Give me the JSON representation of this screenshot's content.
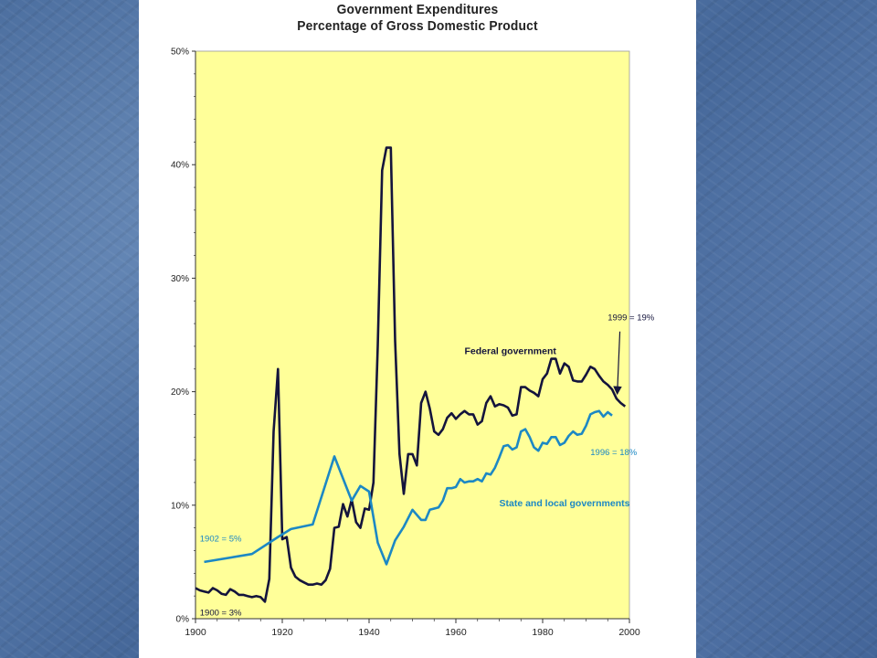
{
  "chart_data": {
    "type": "line",
    "title": "Government Expenditures",
    "subtitle": "Percentage of Gross Domestic Product",
    "xlim": [
      1900,
      2000
    ],
    "ylim": [
      0,
      50
    ],
    "x_ticks": [
      "1900",
      "1920",
      "1940",
      "1960",
      "1980",
      "2000"
    ],
    "y_ticks": [
      "0%",
      "10%",
      "20%",
      "30%",
      "40%",
      "50%"
    ],
    "colors": {
      "plot_bg": "#ffff99",
      "federal": "#14143c",
      "state": "#1c88c4",
      "slide_bg": "#4f73a6"
    },
    "series": [
      {
        "name": "Federal government",
        "color": "#14143c",
        "points": [
          [
            1900,
            2.7
          ],
          [
            1901,
            2.5
          ],
          [
            1902,
            2.4
          ],
          [
            1903,
            2.3
          ],
          [
            1904,
            2.7
          ],
          [
            1905,
            2.5
          ],
          [
            1906,
            2.2
          ],
          [
            1907,
            2.1
          ],
          [
            1908,
            2.6
          ],
          [
            1909,
            2.4
          ],
          [
            1910,
            2.1
          ],
          [
            1911,
            2.1
          ],
          [
            1912,
            2.0
          ],
          [
            1913,
            1.9
          ],
          [
            1914,
            2.0
          ],
          [
            1915,
            1.9
          ],
          [
            1916,
            1.5
          ],
          [
            1917,
            3.5
          ],
          [
            1918,
            16.5
          ],
          [
            1919,
            22.0
          ],
          [
            1920,
            7.0
          ],
          [
            1921,
            7.2
          ],
          [
            1922,
            4.5
          ],
          [
            1923,
            3.7
          ],
          [
            1924,
            3.4
          ],
          [
            1925,
            3.2
          ],
          [
            1926,
            3.0
          ],
          [
            1927,
            3.0
          ],
          [
            1928,
            3.1
          ],
          [
            1929,
            3.0
          ],
          [
            1930,
            3.4
          ],
          [
            1931,
            4.4
          ],
          [
            1932,
            8.0
          ],
          [
            1933,
            8.1
          ],
          [
            1934,
            10.1
          ],
          [
            1935,
            9.0
          ],
          [
            1936,
            10.5
          ],
          [
            1937,
            8.5
          ],
          [
            1938,
            8.0
          ],
          [
            1939,
            9.7
          ],
          [
            1940,
            9.6
          ],
          [
            1941,
            12.0
          ],
          [
            1942,
            24.0
          ],
          [
            1943,
            39.5
          ],
          [
            1944,
            41.5
          ],
          [
            1945,
            41.5
          ],
          [
            1946,
            24.5
          ],
          [
            1947,
            14.5
          ],
          [
            1948,
            11.0
          ],
          [
            1949,
            14.5
          ],
          [
            1950,
            14.5
          ],
          [
            1951,
            13.5
          ],
          [
            1952,
            19.0
          ],
          [
            1953,
            20.0
          ],
          [
            1954,
            18.5
          ],
          [
            1955,
            16.5
          ],
          [
            1956,
            16.2
          ],
          [
            1957,
            16.7
          ],
          [
            1958,
            17.7
          ],
          [
            1959,
            18.1
          ],
          [
            1960,
            17.6
          ],
          [
            1961,
            18.0
          ],
          [
            1962,
            18.3
          ],
          [
            1963,
            18.0
          ],
          [
            1964,
            18.0
          ],
          [
            1965,
            17.1
          ],
          [
            1966,
            17.4
          ],
          [
            1967,
            19.0
          ],
          [
            1968,
            19.6
          ],
          [
            1969,
            18.7
          ],
          [
            1970,
            18.9
          ],
          [
            1971,
            18.8
          ],
          [
            1972,
            18.6
          ],
          [
            1973,
            17.9
          ],
          [
            1974,
            18.0
          ],
          [
            1975,
            20.4
          ],
          [
            1976,
            20.4
          ],
          [
            1977,
            20.1
          ],
          [
            1978,
            19.9
          ],
          [
            1979,
            19.6
          ],
          [
            1980,
            21.1
          ],
          [
            1981,
            21.6
          ],
          [
            1982,
            22.9
          ],
          [
            1983,
            22.9
          ],
          [
            1984,
            21.6
          ],
          [
            1985,
            22.5
          ],
          [
            1986,
            22.2
          ],
          [
            1987,
            21.0
          ],
          [
            1988,
            20.9
          ],
          [
            1989,
            20.9
          ],
          [
            1990,
            21.5
          ],
          [
            1991,
            22.2
          ],
          [
            1992,
            22.0
          ],
          [
            1993,
            21.4
          ],
          [
            1994,
            20.9
          ],
          [
            1995,
            20.6
          ],
          [
            1996,
            20.2
          ],
          [
            1997,
            19.4
          ],
          [
            1998,
            19.0
          ],
          [
            1999,
            18.7
          ]
        ]
      },
      {
        "name": "State and local governments",
        "color": "#1c88c4",
        "points": [
          [
            1902,
            5.0
          ],
          [
            1913,
            5.7
          ],
          [
            1919,
            7.2
          ],
          [
            1922,
            7.9
          ],
          [
            1927,
            8.3
          ],
          [
            1932,
            14.3
          ],
          [
            1936,
            10.4
          ],
          [
            1938,
            11.7
          ],
          [
            1940,
            11.2
          ],
          [
            1942,
            6.7
          ],
          [
            1944,
            4.8
          ],
          [
            1946,
            6.9
          ],
          [
            1948,
            8.1
          ],
          [
            1950,
            9.6
          ],
          [
            1952,
            8.7
          ],
          [
            1953,
            8.7
          ],
          [
            1954,
            9.6
          ],
          [
            1955,
            9.7
          ],
          [
            1956,
            9.8
          ],
          [
            1957,
            10.4
          ],
          [
            1958,
            11.5
          ],
          [
            1959,
            11.5
          ],
          [
            1960,
            11.6
          ],
          [
            1961,
            12.3
          ],
          [
            1962,
            12.0
          ],
          [
            1963,
            12.1
          ],
          [
            1964,
            12.1
          ],
          [
            1965,
            12.3
          ],
          [
            1966,
            12.1
          ],
          [
            1967,
            12.8
          ],
          [
            1968,
            12.7
          ],
          [
            1969,
            13.3
          ],
          [
            1970,
            14.2
          ],
          [
            1971,
            15.2
          ],
          [
            1972,
            15.3
          ],
          [
            1973,
            14.9
          ],
          [
            1974,
            15.1
          ],
          [
            1975,
            16.5
          ],
          [
            1976,
            16.7
          ],
          [
            1977,
            16.0
          ],
          [
            1978,
            15.1
          ],
          [
            1979,
            14.8
          ],
          [
            1980,
            15.5
          ],
          [
            1981,
            15.4
          ],
          [
            1982,
            16.0
          ],
          [
            1983,
            16.0
          ],
          [
            1984,
            15.3
          ],
          [
            1985,
            15.5
          ],
          [
            1986,
            16.1
          ],
          [
            1987,
            16.5
          ],
          [
            1988,
            16.2
          ],
          [
            1989,
            16.3
          ],
          [
            1990,
            17.0
          ],
          [
            1991,
            18.0
          ],
          [
            1992,
            18.2
          ],
          [
            1993,
            18.3
          ],
          [
            1994,
            17.8
          ],
          [
            1995,
            18.2
          ],
          [
            1996,
            17.9
          ]
        ]
      }
    ],
    "annotations": [
      {
        "text": "Federal government",
        "x": 1962,
        "y": 23.3,
        "color": "#14143c"
      },
      {
        "text": "State and local governments",
        "x": 1970,
        "y": 9.9,
        "color": "#1c88c4"
      },
      {
        "text": "1999 = 19%",
        "x": 1995,
        "y": 26.3,
        "color": "#14143c"
      },
      {
        "text": "1996 = 18%",
        "x": 1991,
        "y": 14.4,
        "color": "#1c88c4"
      },
      {
        "text": "1902 = 5%",
        "x": 1901,
        "y": 6.8,
        "color": "#1c88c4"
      },
      {
        "text": "1900 = 3%",
        "x": 1901,
        "y": 0.3,
        "color": "#14143c"
      }
    ]
  }
}
